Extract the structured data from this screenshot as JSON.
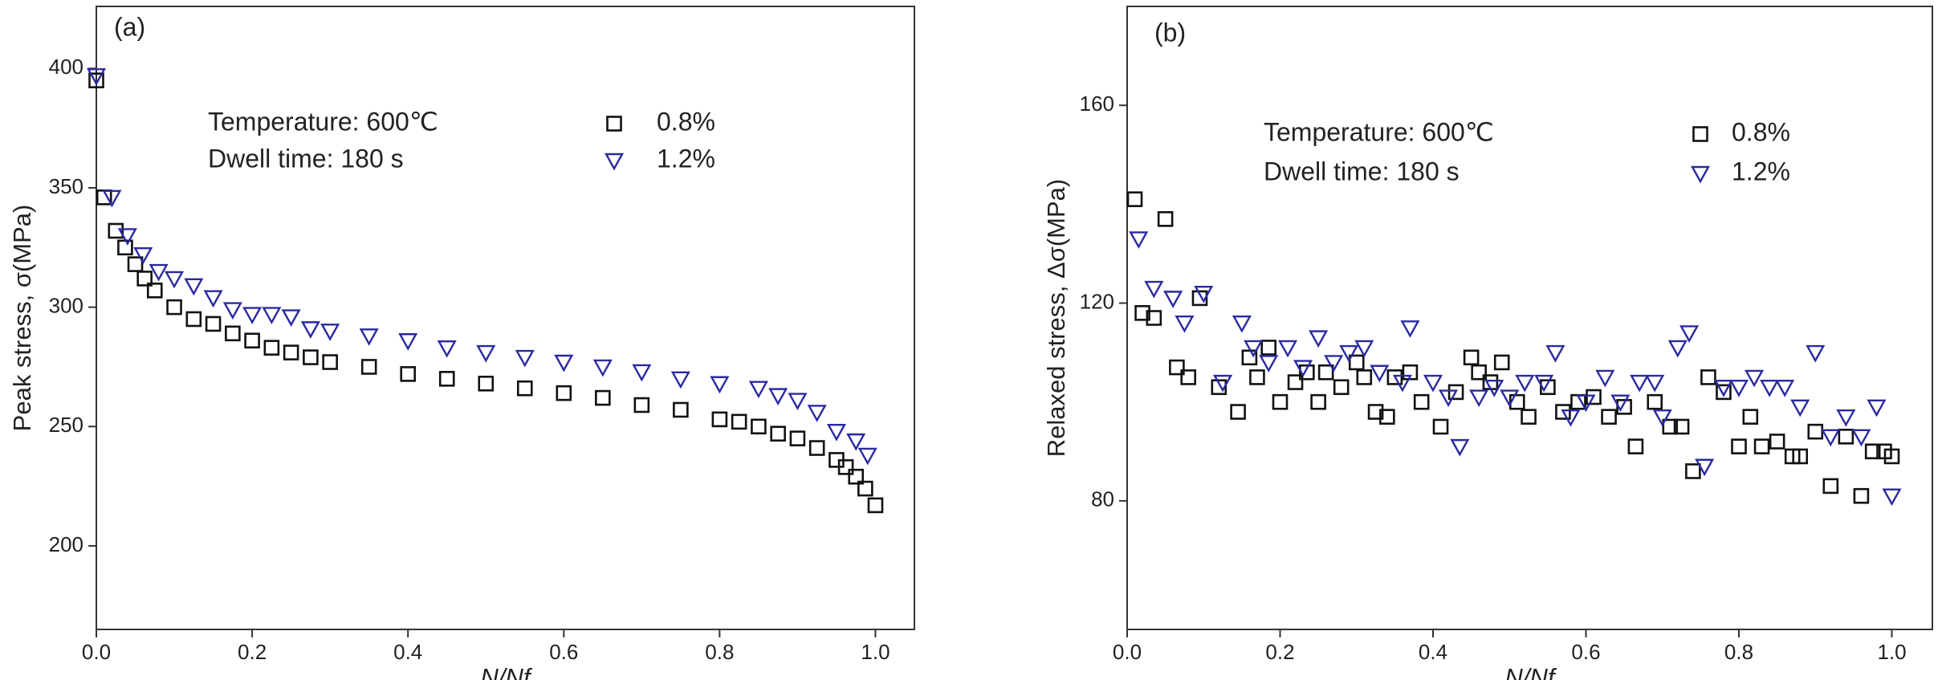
{
  "chart_data": [
    {
      "type": "scatter",
      "title": "(a)",
      "annotations": [
        "Temperature: 600℃",
        "Dwell time: 180 s"
      ],
      "xlabel": "N/Nf",
      "ylabel": "Peak stress, σ(MPa)",
      "xlim": [
        0,
        1.05
      ],
      "ylim": [
        165,
        426
      ],
      "xticks": [
        {
          "value": 0,
          "label": "0.0"
        },
        0.2,
        0.4,
        0.6,
        0.8,
        {
          "value": 1,
          "label": "1.0"
        }
      ],
      "yticks": [
        200,
        250,
        300,
        350,
        400
      ],
      "series": [
        {
          "name": "0.8%",
          "color": "#111111",
          "marker": "square",
          "x": [
            0,
            0.01,
            0.025,
            0.037,
            0.05,
            0.062,
            0.075,
            0.1,
            0.125,
            0.15,
            0.175,
            0.2,
            0.225,
            0.25,
            0.275,
            0.3,
            0.35,
            0.4,
            0.45,
            0.5,
            0.55,
            0.6,
            0.65,
            0.7,
            0.75,
            0.8,
            0.825,
            0.85,
            0.875,
            0.9,
            0.925,
            0.95,
            0.962,
            0.975,
            0.987,
            1.0
          ],
          "values": [
            395,
            346,
            332,
            325,
            318,
            312,
            307,
            300,
            295,
            293,
            289,
            286,
            283,
            281,
            279,
            277,
            275,
            272,
            270,
            268,
            266,
            264,
            262,
            259,
            257,
            253,
            252,
            250,
            247,
            245,
            241,
            236,
            233,
            229,
            224,
            217
          ]
        },
        {
          "name": "1.2%",
          "color": "#2a2aa0",
          "marker": "triangle-down",
          "x": [
            0,
            0.02,
            0.04,
            0.06,
            0.08,
            0.1,
            0.125,
            0.15,
            0.175,
            0.2,
            0.225,
            0.25,
            0.275,
            0.3,
            0.35,
            0.4,
            0.45,
            0.5,
            0.55,
            0.6,
            0.65,
            0.7,
            0.75,
            0.8,
            0.85,
            0.875,
            0.9,
            0.925,
            0.95,
            0.975,
            0.99
          ],
          "values": [
            397,
            346,
            330,
            322,
            315,
            312,
            309,
            304,
            299,
            297,
            297,
            296,
            291,
            290,
            288,
            286,
            283,
            281,
            279,
            277,
            275,
            273,
            270,
            268,
            266,
            263,
            261,
            256,
            248,
            244,
            238
          ]
        }
      ]
    },
    {
      "type": "scatter",
      "title": "(b)",
      "annotations": [
        "Temperature: 600℃",
        "Dwell time: 180 s"
      ],
      "xlabel": "N/Nf",
      "ylabel": "Relaxed stress, Δσ(MPa)",
      "xlim": [
        0,
        1.053
      ],
      "ylim": [
        54,
        180
      ],
      "xticks": [
        {
          "value": 0,
          "label": "0.0"
        },
        0.2,
        0.4,
        0.6,
        0.8,
        {
          "value": 1,
          "label": "1.0"
        }
      ],
      "yticks": [
        80,
        120,
        160
      ],
      "series": [
        {
          "name": "0.8%",
          "color": "#111111",
          "marker": "square",
          "x": [
            0.01,
            0.02,
            0.035,
            0.05,
            0.065,
            0.08,
            0.095,
            0.12,
            0.145,
            0.16,
            0.17,
            0.185,
            0.2,
            0.22,
            0.235,
            0.25,
            0.26,
            0.28,
            0.3,
            0.31,
            0.325,
            0.34,
            0.35,
            0.37,
            0.385,
            0.41,
            0.43,
            0.45,
            0.46,
            0.475,
            0.49,
            0.51,
            0.525,
            0.55,
            0.57,
            0.59,
            0.61,
            0.63,
            0.65,
            0.665,
            0.69,
            0.71,
            0.725,
            0.74,
            0.76,
            0.78,
            0.8,
            0.815,
            0.83,
            0.85,
            0.87,
            0.88,
            0.9,
            0.92,
            0.94,
            0.96,
            0.975,
            0.99,
            1.0
          ],
          "values": [
            141,
            118,
            117,
            137,
            107,
            105,
            121,
            103,
            98,
            109,
            105,
            111,
            100,
            104,
            106,
            100,
            106,
            103,
            108,
            105,
            98,
            97,
            105,
            106,
            100,
            95,
            102,
            109,
            106,
            104,
            108,
            100,
            97,
            103,
            98,
            100,
            101,
            97,
            99,
            91,
            100,
            95,
            95,
            86,
            105,
            102,
            91,
            97,
            91,
            92,
            89,
            89,
            94,
            83,
            93,
            81,
            90,
            90,
            89
          ]
        },
        {
          "name": "1.2%",
          "color": "#2a2aa0",
          "marker": "triangle-down",
          "x": [
            0.015,
            0.035,
            0.06,
            0.075,
            0.1,
            0.125,
            0.15,
            0.165,
            0.185,
            0.21,
            0.23,
            0.25,
            0.27,
            0.29,
            0.31,
            0.33,
            0.36,
            0.37,
            0.4,
            0.42,
            0.435,
            0.46,
            0.48,
            0.5,
            0.52,
            0.545,
            0.56,
            0.58,
            0.6,
            0.625,
            0.645,
            0.67,
            0.69,
            0.7,
            0.72,
            0.735,
            0.755,
            0.78,
            0.8,
            0.82,
            0.84,
            0.86,
            0.88,
            0.9,
            0.92,
            0.94,
            0.96,
            0.98,
            1.0
          ],
          "values": [
            133,
            123,
            121,
            116,
            122,
            104,
            116,
            111,
            108,
            111,
            107,
            113,
            108,
            110,
            111,
            106,
            104,
            115,
            104,
            101,
            91,
            101,
            103,
            101,
            104,
            104,
            110,
            97,
            100,
            105,
            100,
            104,
            104,
            97,
            111,
            114,
            87,
            103,
            103,
            105,
            103,
            103,
            99,
            110,
            93,
            97,
            93,
            99,
            81
          ]
        }
      ]
    }
  ]
}
